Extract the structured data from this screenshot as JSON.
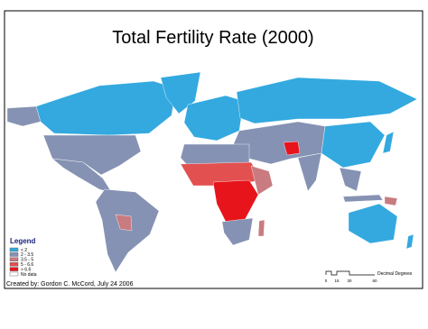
{
  "title": "Total Fertility Rate (2000)",
  "legend": {
    "title": "Legend",
    "items": [
      {
        "label": "< 2",
        "color": "#33a9df"
      },
      {
        "label": "2 - 3.5",
        "color": "#8592b3"
      },
      {
        "label": "3.5 - 5",
        "color": "#c97b80"
      },
      {
        "label": "5 - 6.6",
        "color": "#e2504f"
      },
      {
        "label": "> 6.6",
        "color": "#e8141b"
      },
      {
        "label": "No data",
        "color": "#ffffff"
      }
    ]
  },
  "credit": "Created by: Gordon C. McCord, July 24 2006",
  "scale_bar": {
    "unit": "Decimal Degrees",
    "ticks": [
      "0",
      "15",
      "30",
      "60"
    ]
  }
}
